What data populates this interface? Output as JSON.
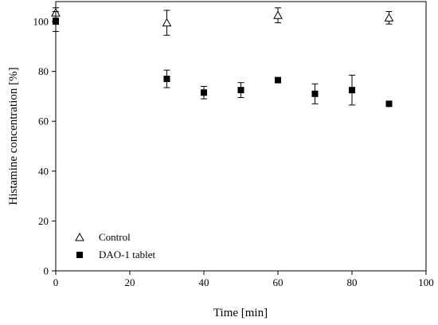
{
  "chart_data": {
    "type": "scatter",
    "xlabel": "Time [min]",
    "ylabel": "Histamine concentration [%]",
    "xlim": [
      0,
      100
    ],
    "ylim": [
      0,
      108
    ],
    "xticks": [
      0,
      20,
      40,
      60,
      80,
      100
    ],
    "yticks": [
      0,
      20,
      40,
      60,
      80,
      100
    ],
    "grid": false,
    "legend_position": "bottom-left",
    "series": [
      {
        "name": "Control",
        "marker": "open-triangle",
        "x": [
          0,
          30,
          60,
          90
        ],
        "y": [
          103.5,
          99.5,
          102.5,
          101.5
        ],
        "err": [
          2,
          5,
          3,
          2.5
        ]
      },
      {
        "name": "DAO-1 tablet",
        "marker": "filled-square",
        "x": [
          0,
          30,
          40,
          50,
          60,
          70,
          80,
          90
        ],
        "y": [
          100,
          77,
          71.5,
          72.5,
          76.5,
          71,
          72.5,
          67
        ],
        "err": [
          4,
          3.5,
          2.5,
          3,
          0.8,
          4,
          6,
          0.8
        ]
      }
    ]
  }
}
